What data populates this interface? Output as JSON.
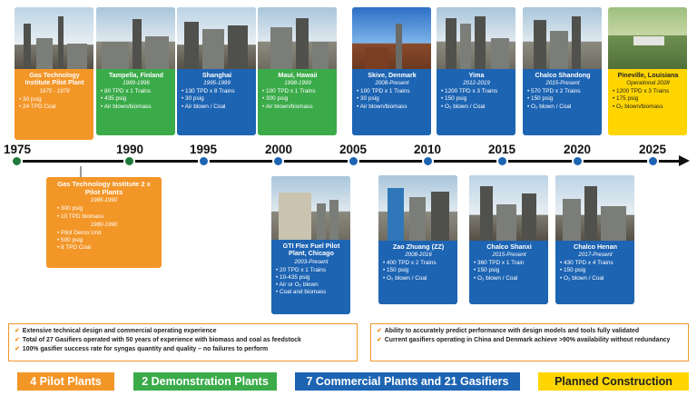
{
  "timeline": {
    "years": [
      "1975",
      "1990",
      "1995",
      "2000",
      "2005",
      "2010",
      "2015",
      "2020",
      "2025"
    ]
  },
  "top_cards": [
    {
      "name": "Gas Technology Institute Pilot Plant",
      "dates": "1975 - 1979",
      "items": [
        "30 psig",
        "24 TPD Coal"
      ],
      "color": "#f39628"
    },
    {
      "name": "Tampella, Finland",
      "dates": "1989-1996",
      "items": [
        "80 TPD x 1 Trains",
        "435 psig",
        "Air blown/biomass"
      ],
      "color": "#3bab4a"
    },
    {
      "name": "Shanghai",
      "dates": "1995-1999",
      "items": [
        "130 TPD x 8 Trains",
        "30 psig",
        "Air blown / Coal"
      ],
      "color": "#1d64b3"
    },
    {
      "name": "Maui, Hawaii",
      "dates": "1998-1999",
      "items": [
        "100 TPD x 1 Trains",
        "300 psig",
        "Air blown/biomass"
      ],
      "color": "#3bab4a"
    },
    {
      "name": "Skive, Denmark",
      "dates": "2008-Present",
      "items": [
        "100 TPD x 1 Trains",
        "30 psig",
        "Air blown/biomass"
      ],
      "color": "#1d64b3"
    },
    {
      "name": "Yima",
      "dates": "2012-2019",
      "items": [
        "1200 TPD x 3 Trains",
        "150 psig",
        "O₂ blown / Coal"
      ],
      "color": "#1d64b3"
    },
    {
      "name": "Chalco Shandong",
      "dates": "2015-Present",
      "items": [
        "570 TPD x 2 Trains",
        "150 psig",
        "O₂ blown / Coal"
      ],
      "color": "#1d64b3"
    },
    {
      "name": "Pineville, Louisiana",
      "dates": "Operational 2028",
      "items": [
        "1200 TPD x 3 Trains",
        "175 psig",
        "O₂ blown/biomass"
      ],
      "color": "#ffd500"
    }
  ],
  "gti2": {
    "name": "Gas Technology Institute 2 x Pilot Plants",
    "dates1": "1985-1990",
    "items1": [
      "300 psig",
      "10 TPD biomass"
    ],
    "dates2": "1980-1990",
    "items2": [
      "Pilot Demo Unit",
      "500 psig",
      "8 TPD Coal"
    ]
  },
  "bottom_cards": [
    {
      "name": "GTI Flex Fuel Pilot Plant, Chicago",
      "dates": "2003-Present",
      "items": [
        "20 TPD x 1 Trains",
        "10-435 psig",
        "Air or O₂ blown",
        "Coal and biomass"
      ]
    },
    {
      "name": "Zao Zhuang (ZZ)",
      "dates": "2008-2016",
      "items": [
        "400 TPD x 2 Trains",
        "150 psig",
        "O₂ blown / Coal"
      ]
    },
    {
      "name": "Chalco Shanxi",
      "dates": "2015-Present",
      "items": [
        "360 TPD x 1 Train",
        "150 psig",
        "O₂ blown / Coal"
      ]
    },
    {
      "name": "Chalco Henan",
      "dates": "2017-Present",
      "items": [
        "430 TPD x 4 Trains",
        "150 psig",
        "O₂ blown / Coal"
      ]
    }
  ],
  "highlights_left": [
    "Extensive technical design and commercial operating experience",
    "Total of 27 Gasifiers operated with 50 years of experience with biomass and coal as feedstock",
    "100% gasifier success rate for syngas quantity and quality – no failures to perform"
  ],
  "highlights_right": [
    "Ability to accurately predict performance with design models and tools fully validated",
    "Current gasifiers operating in China and Denmark achieve >90% availability without redundancy"
  ],
  "legend": [
    {
      "label": "4 Pilot Plants",
      "color": "#f39628"
    },
    {
      "label": "2 Demonstration Plants",
      "color": "#3bab4a"
    },
    {
      "label": "7 Commercial Plants and 21 Gasifiers",
      "color": "#1d64b3"
    },
    {
      "label": "Planned Construction",
      "color": "#ffd500"
    }
  ]
}
